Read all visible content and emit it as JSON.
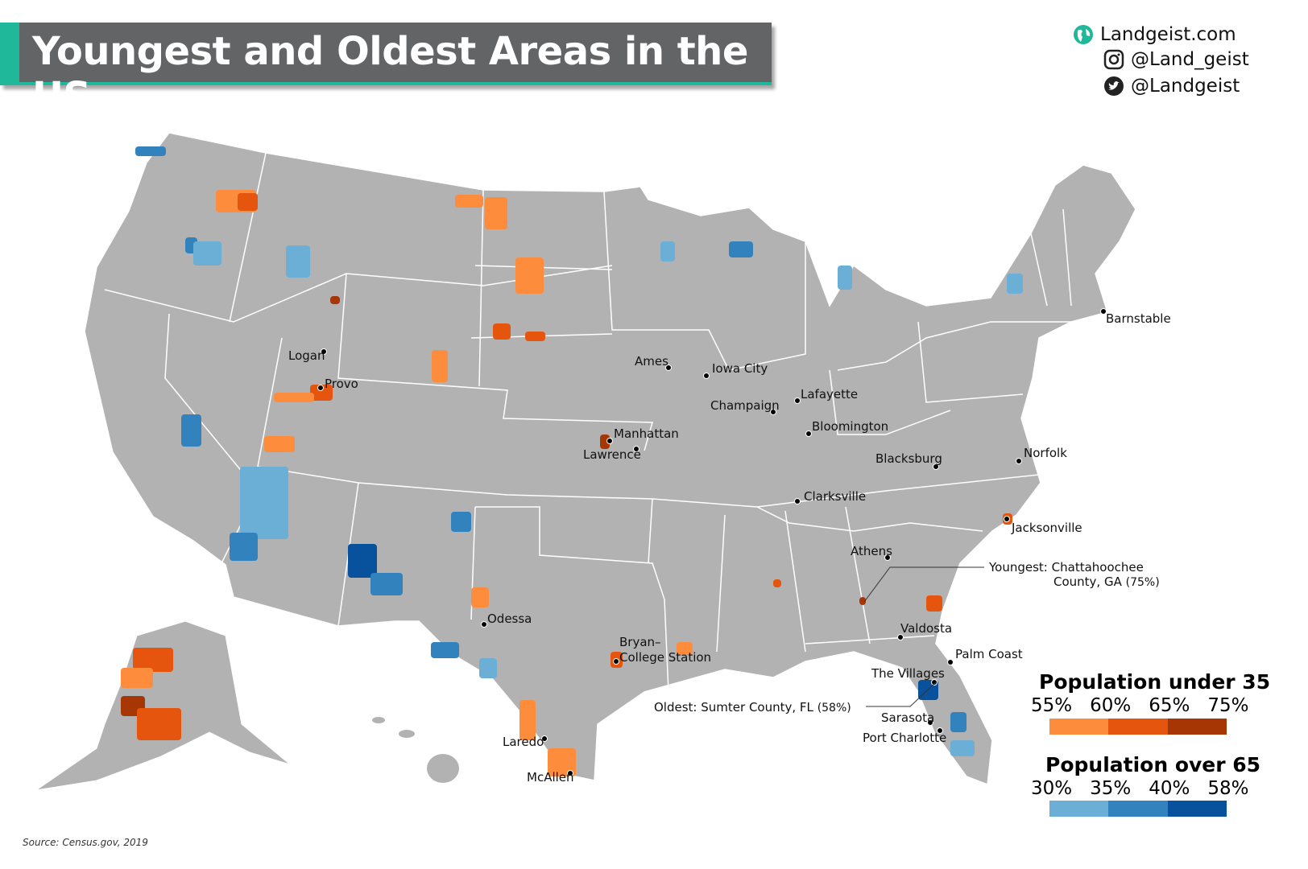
{
  "title": "Youngest and Oldest Areas in the US",
  "branding": {
    "website": "Landgeist.com",
    "instagram": "@Land_geist",
    "twitter": "@Landgeist",
    "icons": [
      "globe-icon",
      "instagram-icon",
      "twitter-icon"
    ]
  },
  "colors": {
    "land": "#b2b2b2",
    "young_55": "#fd8c3c",
    "young_60": "#e6550d",
    "young_65": "#a63603",
    "old_30": "#6baed6",
    "old_35": "#3182bd",
    "old_40": "#08519c",
    "accent": "#1fb89a"
  },
  "cities": [
    "Barnstable",
    "Logan",
    "Provo",
    "Ames",
    "Iowa City",
    "Lafayette",
    "Champaign",
    "Bloomington",
    "Manhattan",
    "Lawrence",
    "Blacksburg",
    "Norfolk",
    "Clarksville",
    "Jacksonville",
    "Athens",
    "Odessa",
    "Valdosta",
    "Bryan–",
    "College Station",
    "Palm Coast",
    "The Villages",
    "Sarasota",
    "Port Charlotte",
    "Laredo",
    "McAllen"
  ],
  "annotations": {
    "youngest_label": "Youngest:",
    "youngest_name": "Chattahoochee",
    "youngest_name2": "County, GA",
    "youngest_value": "(75%)",
    "oldest_label": "Oldest:",
    "oldest_name": "Sumter County, FL",
    "oldest_value": "(58%)"
  },
  "legend": {
    "young": {
      "title": "Population under 35",
      "ticks": [
        "55%",
        "60%",
        "65%",
        "75%"
      ]
    },
    "old": {
      "title": "Population over 65",
      "ticks": [
        "30%",
        "35%",
        "40%",
        "58%"
      ]
    }
  },
  "source": "Source: Census.gov, 2019"
}
